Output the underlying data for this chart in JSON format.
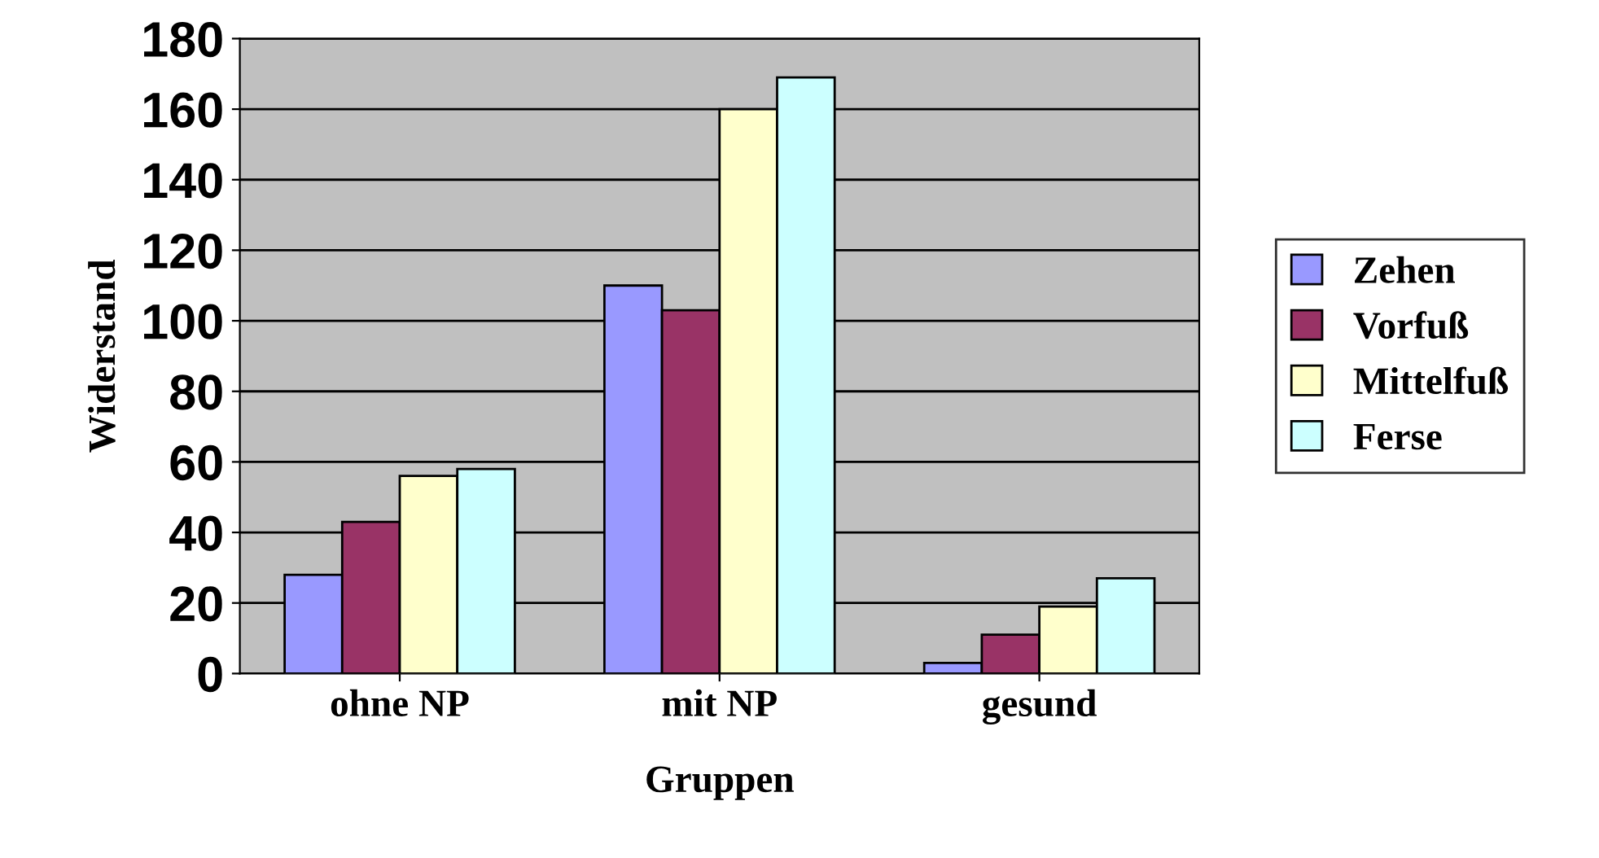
{
  "chart_data": {
    "type": "bar",
    "xlabel": "Gruppen",
    "ylabel": "Widerstand",
    "categories": [
      "ohne NP",
      "mit NP",
      "gesund"
    ],
    "series": [
      {
        "name": "Zehen",
        "color": "#9999ff",
        "values": [
          28,
          110,
          3
        ]
      },
      {
        "name": "Vorfuß",
        "color": "#993366",
        "values": [
          43,
          103,
          11
        ]
      },
      {
        "name": "Mittelfuß",
        "color": "#ffffcc",
        "values": [
          56,
          160,
          19
        ]
      },
      {
        "name": "Ferse",
        "color": "#ccffff",
        "values": [
          58,
          169,
          27
        ]
      }
    ],
    "ylim": [
      0,
      180
    ],
    "yticks": [
      0,
      20,
      40,
      60,
      80,
      100,
      120,
      140,
      160,
      180
    ],
    "grid": "y",
    "legend": "right"
  }
}
